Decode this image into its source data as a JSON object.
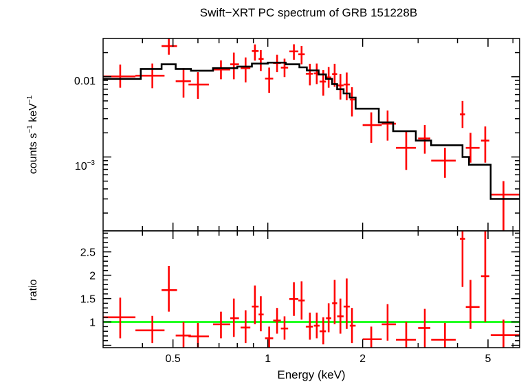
{
  "chart_data": [
    {
      "type": "scatter",
      "panel": "spectrum",
      "title": "Swift−XRT PC spectrum of GRB 151228B",
      "ylabel_main": "counts s",
      "ylabel_exp1": "−1",
      "ylabel_mid": " keV",
      "ylabel_exp2": "−1",
      "xscale": "log",
      "yscale": "log",
      "xlim": [
        0.3,
        6.3
      ],
      "ylim": [
        0.00012,
        0.03
      ],
      "ytick_labels": [
        "0.01",
        "10",
        "−3"
      ],
      "series": [
        {
          "kind": "data_points",
          "color": "#ff0000",
          "points": [
            {
              "x": 0.34,
              "xlo": 0.3,
              "xhi": 0.38,
              "y": 0.0101,
              "ylo": 0.0073,
              "yhi": 0.0142
            },
            {
              "x": 0.43,
              "xlo": 0.38,
              "xhi": 0.47,
              "y": 0.0103,
              "ylo": 0.0072,
              "yhi": 0.0146
            },
            {
              "x": 0.485,
              "xlo": 0.46,
              "xhi": 0.515,
              "y": 0.0241,
              "ylo": 0.0188,
              "yhi": 0.0303
            },
            {
              "x": 0.54,
              "xlo": 0.51,
              "xhi": 0.57,
              "y": 0.0088,
              "ylo": 0.0055,
              "yhi": 0.0128
            },
            {
              "x": 0.6,
              "xlo": 0.56,
              "xhi": 0.65,
              "y": 0.008,
              "ylo": 0.0053,
              "yhi": 0.0114
            },
            {
              "x": 0.71,
              "xlo": 0.67,
              "xhi": 0.76,
              "y": 0.0123,
              "ylo": 0.0093,
              "yhi": 0.016
            },
            {
              "x": 0.78,
              "xlo": 0.76,
              "xhi": 0.81,
              "y": 0.0143,
              "ylo": 0.0093,
              "yhi": 0.02
            },
            {
              "x": 0.85,
              "xlo": 0.82,
              "xhi": 0.88,
              "y": 0.0128,
              "ylo": 0.0085,
              "yhi": 0.0174
            },
            {
              "x": 0.91,
              "xlo": 0.89,
              "xhi": 0.935,
              "y": 0.0209,
              "ylo": 0.0159,
              "yhi": 0.0253
            },
            {
              "x": 0.95,
              "xlo": 0.935,
              "xhi": 0.97,
              "y": 0.0167,
              "ylo": 0.0118,
              "yhi": 0.0215
            },
            {
              "x": 1.01,
              "xlo": 0.98,
              "xhi": 1.04,
              "y": 0.0095,
              "ylo": 0.0063,
              "yhi": 0.013
            },
            {
              "x": 1.07,
              "xlo": 1.04,
              "xhi": 1.1,
              "y": 0.0148,
              "ylo": 0.0114,
              "yhi": 0.0188
            },
            {
              "x": 1.13,
              "xlo": 1.1,
              "xhi": 1.16,
              "y": 0.013,
              "ylo": 0.0099,
              "yhi": 0.0168
            },
            {
              "x": 1.21,
              "xlo": 1.17,
              "xhi": 1.25,
              "y": 0.0207,
              "ylo": 0.0163,
              "yhi": 0.0254
            },
            {
              "x": 1.28,
              "xlo": 1.25,
              "xhi": 1.31,
              "y": 0.0191,
              "ylo": 0.0143,
              "yhi": 0.0242
            },
            {
              "x": 1.36,
              "xlo": 1.32,
              "xhi": 1.39,
              "y": 0.0109,
              "ylo": 0.0078,
              "yhi": 0.0145
            },
            {
              "x": 1.43,
              "xlo": 1.4,
              "xhi": 1.46,
              "y": 0.011,
              "ylo": 0.0081,
              "yhi": 0.0146
            },
            {
              "x": 1.5,
              "xlo": 1.46,
              "xhi": 1.53,
              "y": 0.0087,
              "ylo": 0.0058,
              "yhi": 0.0121
            },
            {
              "x": 1.56,
              "xlo": 1.53,
              "xhi": 1.59,
              "y": 0.0098,
              "ylo": 0.0073,
              "yhi": 0.0132
            },
            {
              "x": 1.63,
              "xlo": 1.6,
              "xhi": 1.66,
              "y": 0.0108,
              "ylo": 0.0075,
              "yhi": 0.0145
            },
            {
              "x": 1.7,
              "xlo": 1.66,
              "xhi": 1.74,
              "y": 0.0078,
              "ylo": 0.0052,
              "yhi": 0.0108
            },
            {
              "x": 1.78,
              "xlo": 1.74,
              "xhi": 1.82,
              "y": 0.008,
              "ylo": 0.0051,
              "yhi": 0.0113
            },
            {
              "x": 1.85,
              "xlo": 1.82,
              "xhi": 1.9,
              "y": 0.0052,
              "ylo": 0.0032,
              "yhi": 0.0074
            },
            {
              "x": 2.13,
              "xlo": 2.0,
              "xhi": 2.3,
              "y": 0.0025,
              "ylo": 0.0015,
              "yhi": 0.0036
            },
            {
              "x": 2.4,
              "xlo": 2.3,
              "xhi": 2.55,
              "y": 0.0026,
              "ylo": 0.0016,
              "yhi": 0.0038
            },
            {
              "x": 2.75,
              "xlo": 2.55,
              "xhi": 2.95,
              "y": 0.0013,
              "ylo": 0.00069,
              "yhi": 0.0021
            },
            {
              "x": 3.15,
              "xlo": 3.0,
              "xhi": 3.28,
              "y": 0.0017,
              "ylo": 0.0011,
              "yhi": 0.0025
            },
            {
              "x": 3.65,
              "xlo": 3.3,
              "xhi": 3.95,
              "y": 0.0009,
              "ylo": 0.00055,
              "yhi": 0.0013
            },
            {
              "x": 4.15,
              "xlo": 4.07,
              "xhi": 4.23,
              "y": 0.0034,
              "ylo": 0.0023,
              "yhi": 0.005
            },
            {
              "x": 4.4,
              "xlo": 4.25,
              "xhi": 4.7,
              "y": 0.0013,
              "ylo": 0.00085,
              "yhi": 0.002
            },
            {
              "x": 4.9,
              "xlo": 4.75,
              "xhi": 5.05,
              "y": 0.0016,
              "ylo": 0.00085,
              "yhi": 0.0024
            },
            {
              "x": 5.6,
              "xlo": 5.1,
              "xhi": 6.3,
              "y": 0.00034,
              "ylo": 0.00012,
              "yhi": 0.0005
            }
          ]
        },
        {
          "kind": "model_histogram",
          "color": "#000000",
          "steps": [
            {
              "x0": 0.3,
              "x1": 0.395,
              "y": 0.0094
            },
            {
              "x0": 0.395,
              "x1": 0.46,
              "y": 0.0125
            },
            {
              "x0": 0.46,
              "x1": 0.51,
              "y": 0.0143
            },
            {
              "x0": 0.51,
              "x1": 0.57,
              "y": 0.0125
            },
            {
              "x0": 0.57,
              "x1": 0.67,
              "y": 0.0119
            },
            {
              "x0": 0.67,
              "x1": 0.8,
              "y": 0.0128
            },
            {
              "x0": 0.8,
              "x1": 0.89,
              "y": 0.0134
            },
            {
              "x0": 0.89,
              "x1": 1.0,
              "y": 0.0146
            },
            {
              "x0": 1.0,
              "x1": 1.14,
              "y": 0.015
            },
            {
              "x0": 1.14,
              "x1": 1.26,
              "y": 0.0143
            },
            {
              "x0": 1.26,
              "x1": 1.33,
              "y": 0.0131
            },
            {
              "x0": 1.33,
              "x1": 1.45,
              "y": 0.012
            },
            {
              "x0": 1.45,
              "x1": 1.53,
              "y": 0.0107
            },
            {
              "x0": 1.53,
              "x1": 1.6,
              "y": 0.0094
            },
            {
              "x0": 1.6,
              "x1": 1.66,
              "y": 0.0081
            },
            {
              "x0": 1.66,
              "x1": 1.74,
              "y": 0.007
            },
            {
              "x0": 1.74,
              "x1": 1.82,
              "y": 0.0062
            },
            {
              "x0": 1.82,
              "x1": 1.9,
              "y": 0.0055
            },
            {
              "x0": 1.9,
              "x1": 2.25,
              "y": 0.004
            },
            {
              "x0": 2.25,
              "x1": 2.5,
              "y": 0.0027
            },
            {
              "x0": 2.5,
              "x1": 2.95,
              "y": 0.0021
            },
            {
              "x0": 2.95,
              "x1": 3.3,
              "y": 0.0016
            },
            {
              "x0": 3.3,
              "x1": 4.15,
              "y": 0.0014
            },
            {
              "x0": 4.15,
              "x1": 4.35,
              "y": 0.001
            },
            {
              "x0": 4.35,
              "x1": 5.1,
              "y": 0.0008
            },
            {
              "x0": 5.1,
              "x1": 6.3,
              "y": 0.0003
            }
          ]
        }
      ]
    },
    {
      "type": "scatter",
      "panel": "ratio",
      "xlabel": "Energy (keV)",
      "ylabel": "ratio",
      "xscale": "log",
      "xlim": [
        0.3,
        6.3
      ],
      "ylim": [
        0.45,
        2.95
      ],
      "yticks": [
        1,
        1.5,
        2,
        2.5
      ],
      "ytick_labels": [
        "1",
        "1.5",
        "2",
        "2.5"
      ],
      "xticks": [
        0.5,
        1,
        2,
        5
      ],
      "xtick_labels": [
        "0.5",
        "1",
        "2",
        "5"
      ],
      "reference_line": {
        "y": 1,
        "color": "#00ff00"
      },
      "series": [
        {
          "kind": "ratio_points",
          "color": "#ff0000",
          "points": [
            {
              "x": 0.34,
              "xlo": 0.3,
              "xhi": 0.38,
              "y": 1.1,
              "ylo": 0.65,
              "yhi": 1.52
            },
            {
              "x": 0.43,
              "xlo": 0.38,
              "xhi": 0.47,
              "y": 0.82,
              "ylo": 0.55,
              "yhi": 1.13
            },
            {
              "x": 0.485,
              "xlo": 0.46,
              "xhi": 0.515,
              "y": 1.68,
              "ylo": 1.22,
              "yhi": 2.2
            },
            {
              "x": 0.54,
              "xlo": 0.51,
              "xhi": 0.57,
              "y": 0.71,
              "ylo": 0.45,
              "yhi": 1.0
            },
            {
              "x": 0.6,
              "xlo": 0.56,
              "xhi": 0.65,
              "y": 0.69,
              "ylo": 0.45,
              "yhi": 0.98
            },
            {
              "x": 0.71,
              "xlo": 0.67,
              "xhi": 0.76,
              "y": 0.95,
              "ylo": 0.65,
              "yhi": 1.22
            },
            {
              "x": 0.78,
              "xlo": 0.76,
              "xhi": 0.81,
              "y": 1.08,
              "ylo": 0.68,
              "yhi": 1.5
            },
            {
              "x": 0.85,
              "xlo": 0.82,
              "xhi": 0.88,
              "y": 0.88,
              "ylo": 0.55,
              "yhi": 1.25
            },
            {
              "x": 0.91,
              "xlo": 0.89,
              "xhi": 0.935,
              "y": 1.33,
              "ylo": 0.95,
              "yhi": 1.78
            },
            {
              "x": 0.95,
              "xlo": 0.935,
              "xhi": 0.97,
              "y": 1.16,
              "ylo": 0.8,
              "yhi": 1.55
            },
            {
              "x": 1.01,
              "xlo": 0.98,
              "xhi": 1.04,
              "y": 0.65,
              "ylo": 0.45,
              "yhi": 0.9
            },
            {
              "x": 1.07,
              "xlo": 1.04,
              "xhi": 1.1,
              "y": 1.03,
              "ylo": 0.75,
              "yhi": 1.3
            },
            {
              "x": 1.13,
              "xlo": 1.1,
              "xhi": 1.16,
              "y": 0.86,
              "ylo": 0.62,
              "yhi": 1.12
            },
            {
              "x": 1.21,
              "xlo": 1.17,
              "xhi": 1.25,
              "y": 1.49,
              "ylo": 1.13,
              "yhi": 1.85
            },
            {
              "x": 1.28,
              "xlo": 1.25,
              "xhi": 1.31,
              "y": 1.46,
              "ylo": 1.05,
              "yhi": 1.87
            },
            {
              "x": 1.36,
              "xlo": 1.32,
              "xhi": 1.39,
              "y": 0.9,
              "ylo": 0.62,
              "yhi": 1.2
            },
            {
              "x": 1.43,
              "xlo": 1.4,
              "xhi": 1.46,
              "y": 0.92,
              "ylo": 0.65,
              "yhi": 1.2
            },
            {
              "x": 1.5,
              "xlo": 1.46,
              "xhi": 1.53,
              "y": 0.8,
              "ylo": 0.52,
              "yhi": 1.1
            },
            {
              "x": 1.56,
              "xlo": 1.53,
              "xhi": 1.59,
              "y": 1.08,
              "ylo": 0.78,
              "yhi": 1.4
            },
            {
              "x": 1.63,
              "xlo": 1.6,
              "xhi": 1.66,
              "y": 1.4,
              "ylo": 0.95,
              "yhi": 1.9
            },
            {
              "x": 1.7,
              "xlo": 1.66,
              "xhi": 1.74,
              "y": 1.12,
              "ylo": 0.75,
              "yhi": 1.5
            },
            {
              "x": 1.78,
              "xlo": 1.74,
              "xhi": 1.82,
              "y": 1.33,
              "ylo": 0.85,
              "yhi": 1.93
            },
            {
              "x": 1.85,
              "xlo": 1.82,
              "xhi": 1.9,
              "y": 0.92,
              "ylo": 0.55,
              "yhi": 1.3
            },
            {
              "x": 2.13,
              "xlo": 2.0,
              "xhi": 2.3,
              "y": 0.63,
              "ylo": 0.45,
              "yhi": 0.9
            },
            {
              "x": 2.4,
              "xlo": 2.3,
              "xhi": 2.55,
              "y": 0.95,
              "ylo": 0.6,
              "yhi": 1.38
            },
            {
              "x": 2.75,
              "xlo": 2.55,
              "xhi": 2.95,
              "y": 0.62,
              "ylo": 0.45,
              "yhi": 1.0
            },
            {
              "x": 3.15,
              "xlo": 3.0,
              "xhi": 3.28,
              "y": 0.87,
              "ylo": 0.45,
              "yhi": 1.28
            },
            {
              "x": 3.65,
              "xlo": 3.3,
              "xhi": 3.95,
              "y": 0.62,
              "ylo": 0.45,
              "yhi": 0.98
            },
            {
              "x": 4.15,
              "xlo": 4.07,
              "xhi": 4.23,
              "y": 2.78,
              "ylo": 1.75,
              "yhi": 2.95
            },
            {
              "x": 4.4,
              "xlo": 4.25,
              "xhi": 4.7,
              "y": 1.32,
              "ylo": 0.85,
              "yhi": 1.9
            },
            {
              "x": 4.9,
              "xlo": 4.75,
              "xhi": 5.05,
              "y": 1.98,
              "ylo": 1.0,
              "yhi": 2.95
            },
            {
              "x": 5.6,
              "xlo": 5.1,
              "xhi": 6.3,
              "y": 0.72,
              "ylo": 0.45,
              "yhi": 1.05
            }
          ]
        }
      ]
    }
  ]
}
